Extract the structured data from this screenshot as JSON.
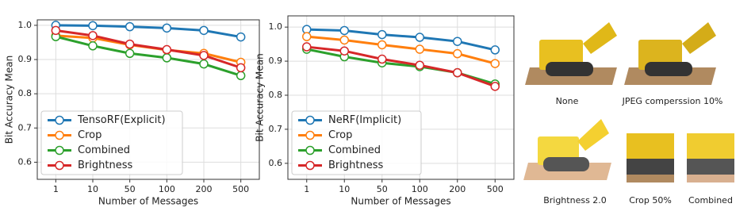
{
  "chart_data": [
    {
      "type": "line",
      "xlabel": "Number of Messages",
      "ylabel": "Bit Accuracy Mean",
      "categories": [
        "1",
        "10",
        "50",
        "100",
        "200",
        "500"
      ],
      "ylim": [
        0.55,
        1.016
      ],
      "yticks": [
        0.6,
        0.7,
        0.8,
        0.9,
        {
          "value": 1.0,
          "label": "1.0"
        }
      ],
      "grid": true,
      "legend": "lower left",
      "series": [
        {
          "name": "TensoRF(Explicit)",
          "color": "#1f77b4",
          "values": [
            1.0,
            0.999,
            0.996,
            0.992,
            0.985,
            0.966
          ]
        },
        {
          "name": "Crop",
          "color": "#ff7f0e",
          "values": [
            0.97,
            0.963,
            0.943,
            0.928,
            0.918,
            0.892
          ]
        },
        {
          "name": "Combined",
          "color": "#2ca02c",
          "values": [
            0.967,
            0.94,
            0.918,
            0.905,
            0.887,
            0.853
          ]
        },
        {
          "name": "Brightness",
          "color": "#d62728",
          "values": [
            0.985,
            0.97,
            0.945,
            0.929,
            0.912,
            0.876
          ]
        }
      ]
    },
    {
      "type": "line",
      "xlabel": "Number of Messages",
      "ylabel": "Bit Accuracy Mean",
      "categories": [
        "1",
        "10",
        "50",
        "100",
        "200",
        "500"
      ],
      "ylim": [
        0.553,
        1.033
      ],
      "yticks": [
        0.6,
        0.7,
        0.8,
        0.9,
        {
          "value": 1.0,
          "label": "1.0"
        }
      ],
      "grid": true,
      "legend": "lower left",
      "series": [
        {
          "name": "NeRF(Implicit)",
          "color": "#1f77b4",
          "values": [
            0.993,
            0.99,
            0.978,
            0.97,
            0.958,
            0.933
          ]
        },
        {
          "name": "Crop",
          "color": "#ff7f0e",
          "values": [
            0.972,
            0.962,
            0.948,
            0.935,
            0.922,
            0.893
          ]
        },
        {
          "name": "Combined",
          "color": "#2ca02c",
          "values": [
            0.935,
            0.913,
            0.895,
            0.884,
            0.866,
            0.833
          ]
        },
        {
          "name": "Brightness",
          "color": "#d62728",
          "values": [
            0.942,
            0.93,
            0.906,
            0.888,
            0.866,
            0.826
          ]
        }
      ]
    }
  ],
  "image_panel": {
    "captions": [
      "None",
      "JPEG comperssion 10%",
      "Brightness 2.0",
      "Crop 50%",
      "Combined"
    ]
  }
}
